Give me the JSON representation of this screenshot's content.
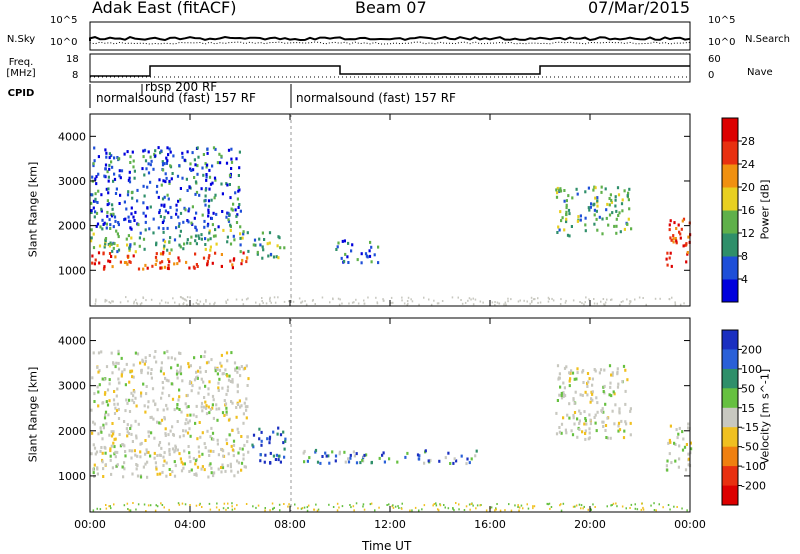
{
  "header": {
    "title": "Adak East (fitACF)",
    "beam": "Beam 07",
    "date": "07/Mar/2015"
  },
  "side_labels": {
    "n_sky": "N.Sky",
    "freq": "Freq.",
    "mhz": "[MHz]",
    "cpid": "CPID",
    "n_search": "N.Search",
    "nave": "Nave"
  },
  "nsky_ticks": {
    "top": "10^5",
    "bottom": "10^0"
  },
  "freq_ticks": {
    "top": "18",
    "bottom": "8"
  },
  "nave_ticks": {
    "top": "60",
    "bottom": "0"
  },
  "cpid_labels": [
    "normalsound (fast) 157 RF",
    "rbsp 200 RF",
    "normalsound (fast) 157 RF"
  ],
  "chart_data": [
    {
      "type": "heatmap",
      "title": "",
      "xlabel": "",
      "ylabel": "Slant Range [km]",
      "xlim_hours": [
        0,
        24
      ],
      "ylim": [
        200,
        4500
      ],
      "yticks": [
        "1000",
        "2000",
        "3000",
        "4000"
      ],
      "colorbar": {
        "label": "Power [dB]",
        "ticks": [
          "4",
          "8",
          "12",
          "16",
          "20",
          "24",
          "28"
        ],
        "colors": [
          "#0000dd",
          "#1e4fd8",
          "#2f8f6a",
          "#5fb04a",
          "#e8d020",
          "#f09010",
          "#e83010",
          "#dd0000"
        ]
      },
      "regions": [
        {
          "t": [
            0.0,
            6.3
          ],
          "range": [
            1050,
            1450
          ],
          "level": "high"
        },
        {
          "t": [
            0.0,
            6.3
          ],
          "range": [
            1450,
            1950
          ],
          "level": "medium"
        },
        {
          "t": [
            0.0,
            6.0
          ],
          "range": [
            1950,
            3800
          ],
          "level": "low"
        },
        {
          "t": [
            6.5,
            7.8
          ],
          "range": [
            1300,
            1900
          ],
          "level": "medium"
        },
        {
          "t": [
            9.8,
            11.5
          ],
          "range": [
            1200,
            1700
          ],
          "level": "low"
        },
        {
          "t": [
            18.6,
            21.6
          ],
          "range": [
            1800,
            2900
          ],
          "level": "medium"
        },
        {
          "t": [
            23.0,
            24.0
          ],
          "range": [
            1100,
            2200
          ],
          "level": "high"
        }
      ]
    },
    {
      "type": "heatmap",
      "title": "",
      "xlabel": "Time UT",
      "ylabel": "Slant Range [km]",
      "xlim_hours": [
        0,
        24
      ],
      "ylim": [
        200,
        4500
      ],
      "xticks": [
        "00:00",
        "04:00",
        "08:00",
        "12:00",
        "16:00",
        "20:00",
        "00:00"
      ],
      "yticks": [
        "1000",
        "2000",
        "3000",
        "4000"
      ],
      "colorbar": {
        "label": "Velocity [m s^-1]",
        "ticks": [
          "200",
          "100",
          "50",
          "15",
          "-15",
          "-50",
          "-100",
          "-200"
        ],
        "colors": [
          "#1a2fc0",
          "#2a60d8",
          "#2f8f6a",
          "#66c040",
          "#c8c8c0",
          "#f0c020",
          "#f08010",
          "#e83010",
          "#dd0000"
        ]
      },
      "regions": [
        {
          "t": [
            0.0,
            6.3
          ],
          "range": [
            1000,
            3800
          ],
          "level": "ground"
        },
        {
          "t": [
            6.4,
            7.8
          ],
          "range": [
            1300,
            2100
          ],
          "level": "away"
        },
        {
          "t": [
            8.5,
            15.5
          ],
          "range": [
            1300,
            1600
          ],
          "level": "mixed"
        },
        {
          "t": [
            18.6,
            21.6
          ],
          "range": [
            1800,
            3500
          ],
          "level": "ground"
        },
        {
          "t": [
            23.0,
            24.0
          ],
          "range": [
            1100,
            2200
          ],
          "level": "ground"
        }
      ]
    }
  ]
}
